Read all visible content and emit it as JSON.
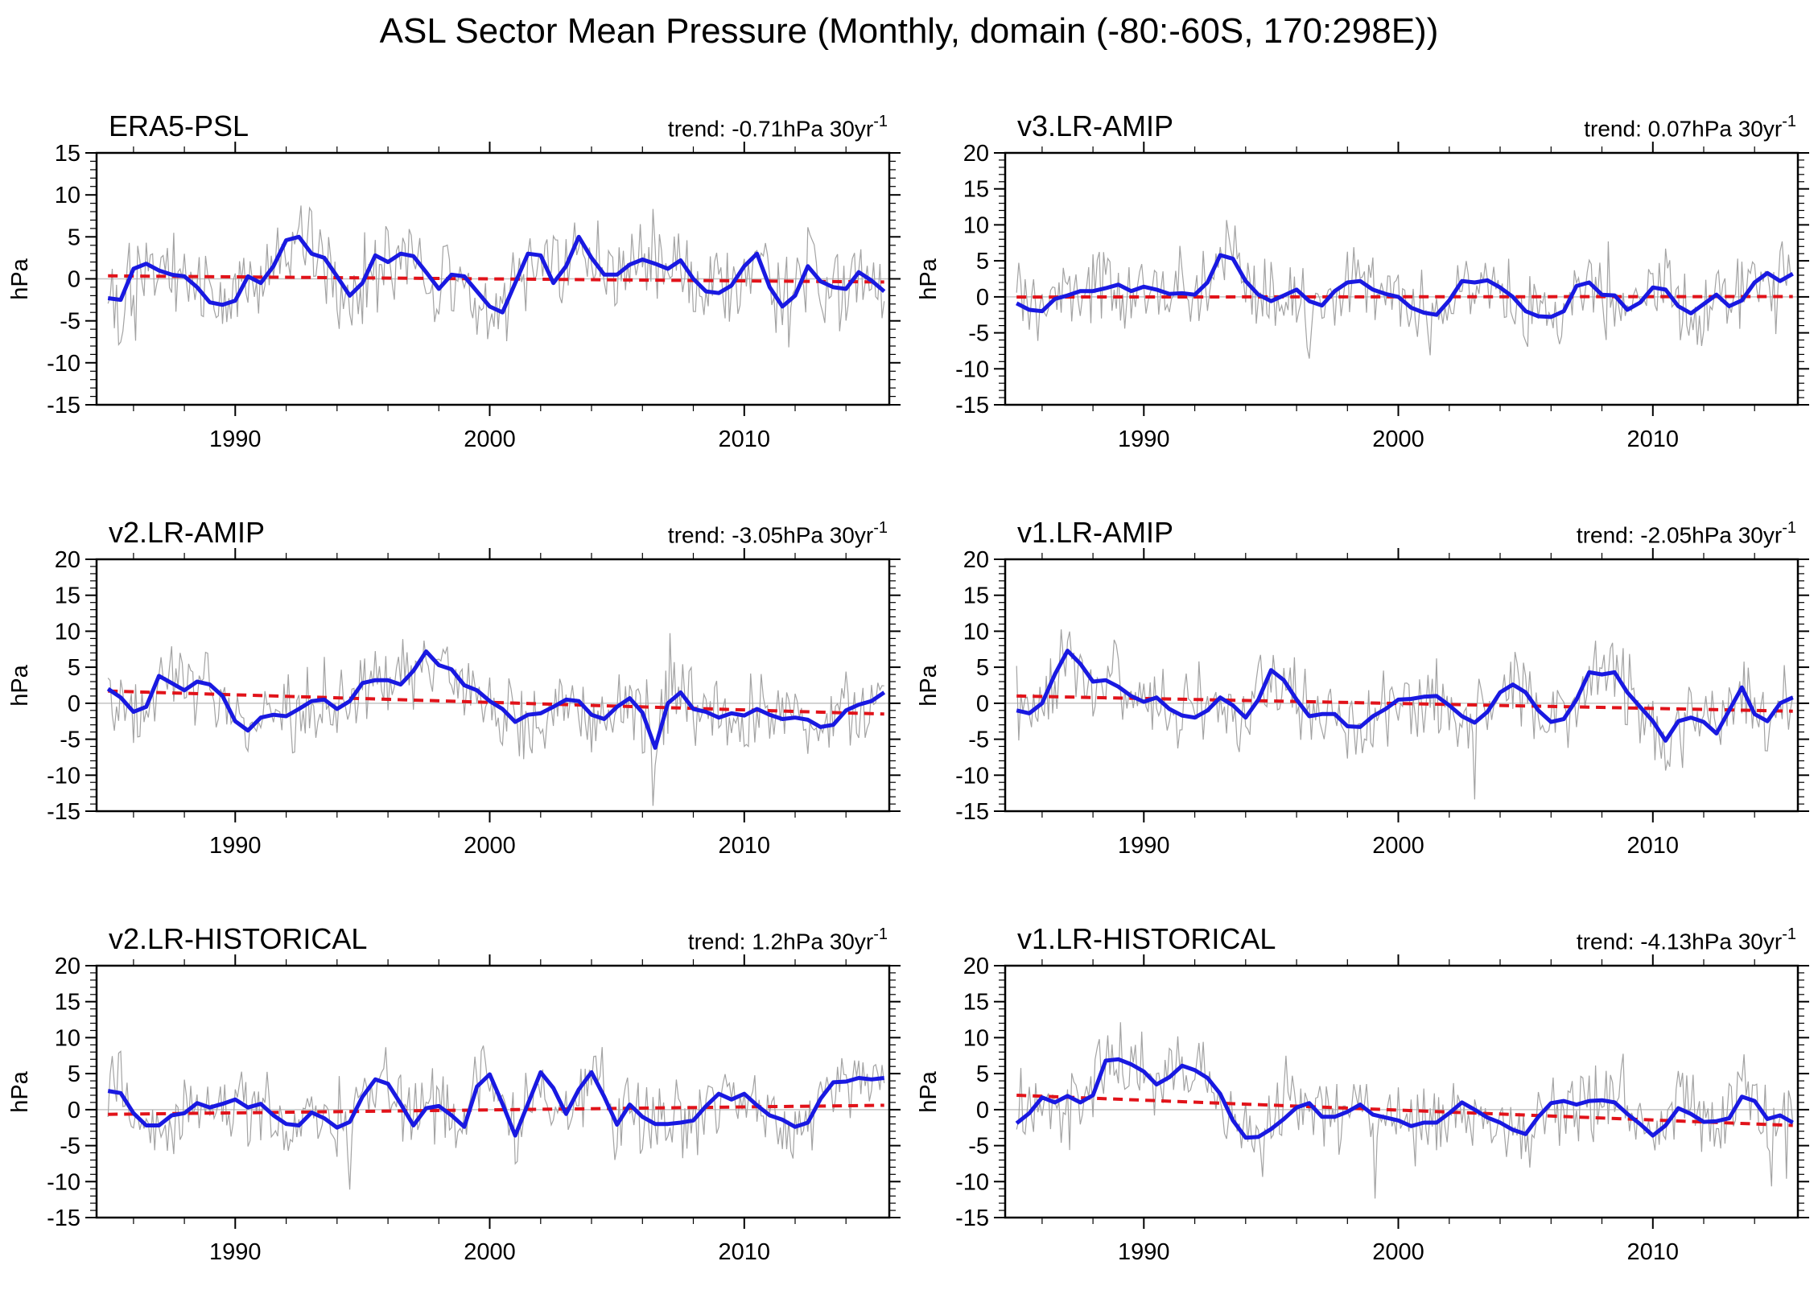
{
  "page_title": "ASL Sector Mean Pressure (Monthly, domain (-80:-60S, 170:298E))",
  "colors": {
    "monthly_line": "#a3a3a3",
    "smoothed_line": "#1919e1",
    "trend_line": "#e1131a",
    "zero_line": "#c4c4c4",
    "axis": "#000000"
  },
  "chart_data": [
    {
      "id": "era5-psl",
      "type": "line",
      "title": "ERA5-PSL",
      "trend_label": "trend: -0.71hPa 30yr",
      "trend_sup": "-1",
      "trend_value_hpa_per_30yr": -0.71,
      "ylabel": "hPa",
      "ylim": [
        -15,
        15
      ],
      "ytick_major": 5,
      "ytick_minor": 1,
      "xlim": [
        1984.55,
        2015.7
      ],
      "xticks": [
        1990,
        2000,
        2010
      ],
      "xtick_minor_step": 2,
      "grid": false,
      "trend_line": {
        "x": [
          1985.0,
          2015.5
        ],
        "y": [
          0.35,
          -0.37
        ]
      },
      "series": [
        {
          "name": "monthly",
          "role": "noisy-monthly",
          "note": "monthly anomalies reconstructed as smoothed series + noise",
          "noise": {
            "seed": 101,
            "amplitude": 4.8,
            "clamp": [
              -13.8,
              13.8
            ]
          }
        },
        {
          "name": "12-month running mean",
          "role": "smoothed",
          "x_start": 1985.0,
          "x_step": 0.5,
          "y": [
            -2.3,
            -2.5,
            1.2,
            1.8,
            1.0,
            0.5,
            0.3,
            -1.0,
            -2.8,
            -3.1,
            -2.6,
            0.3,
            -0.5,
            1.5,
            4.6,
            5.0,
            3.0,
            2.5,
            0.3,
            -2.0,
            -0.5,
            2.8,
            2.0,
            3.0,
            2.7,
            0.8,
            -1.2,
            0.5,
            0.3,
            -1.5,
            -3.3,
            -4.0,
            -0.5,
            3.0,
            2.8,
            -0.5,
            1.5,
            5.0,
            2.5,
            0.5,
            0.5,
            1.7,
            2.3,
            1.8,
            1.2,
            2.2,
            0.0,
            -1.5,
            -1.7,
            -0.8,
            1.5,
            3.0,
            -1.0,
            -3.3,
            -2.0,
            1.5,
            -0.3,
            -1.0,
            -1.2,
            0.8,
            -0.2,
            -1.5
          ]
        }
      ]
    },
    {
      "id": "v3-lr-amip",
      "type": "line",
      "title": "v3.LR-AMIP",
      "trend_label": "trend: 0.07hPa 30yr",
      "trend_sup": "-1",
      "trend_value_hpa_per_30yr": 0.07,
      "ylabel": "hPa",
      "ylim": [
        -15,
        20
      ],
      "ytick_major": 5,
      "ytick_minor": 1,
      "xlim": [
        1984.55,
        2015.7
      ],
      "xticks": [
        1990,
        2000,
        2010
      ],
      "xtick_minor_step": 2,
      "grid": false,
      "trend_line": {
        "x": [
          1985.0,
          2015.5
        ],
        "y": [
          -0.03,
          0.04
        ]
      },
      "series": [
        {
          "name": "monthly",
          "role": "noisy-monthly",
          "note": "monthly anomalies reconstructed as smoothed series + noise",
          "noise": {
            "seed": 102,
            "amplitude": 4.7,
            "clamp": [
              -14.3,
              17.5
            ]
          }
        },
        {
          "name": "12-month running mean",
          "role": "smoothed",
          "x_start": 1985.0,
          "x_step": 0.5,
          "y": [
            -0.9,
            -1.8,
            -2.0,
            -0.3,
            0.2,
            0.8,
            0.8,
            1.2,
            1.7,
            0.8,
            1.4,
            1.0,
            0.4,
            0.5,
            0.3,
            2.0,
            5.8,
            5.3,
            2.2,
            0.3,
            -0.6,
            0.2,
            1.0,
            -0.6,
            -1.2,
            0.8,
            2.0,
            2.2,
            1.0,
            0.4,
            0.0,
            -1.5,
            -2.2,
            -2.5,
            -0.5,
            2.2,
            2.0,
            2.3,
            1.3,
            0.0,
            -2.0,
            -2.7,
            -2.8,
            -2.0,
            1.5,
            2.0,
            0.3,
            0.2,
            -1.8,
            -0.8,
            1.3,
            1.0,
            -1.3,
            -2.3,
            -1.0,
            0.3,
            -1.3,
            -0.5,
            2.0,
            3.3,
            2.2,
            3.2
          ]
        }
      ]
    },
    {
      "id": "v2-lr-amip",
      "type": "line",
      "title": "v2.LR-AMIP",
      "trend_label": "trend: -3.05hPa 30yr",
      "trend_sup": "-1",
      "trend_value_hpa_per_30yr": -3.05,
      "ylabel": "hPa",
      "ylim": [
        -15,
        20
      ],
      "ytick_major": 5,
      "ytick_minor": 1,
      "xlim": [
        1984.55,
        2015.7
      ],
      "xticks": [
        1990,
        2000,
        2010
      ],
      "xtick_minor_step": 2,
      "grid": false,
      "trend_line": {
        "x": [
          1985.0,
          2015.5
        ],
        "y": [
          1.7,
          -1.5
        ]
      },
      "series": [
        {
          "name": "monthly",
          "role": "noisy-monthly",
          "note": "monthly anomalies reconstructed as smoothed series + noise",
          "noise": {
            "seed": 103,
            "amplitude": 4.8,
            "clamp": [
              -14.3,
              17.5
            ]
          }
        },
        {
          "name": "12-month running mean",
          "role": "smoothed",
          "x_start": 1985.0,
          "x_step": 0.5,
          "y": [
            2.0,
            0.8,
            -1.2,
            -0.5,
            3.8,
            2.8,
            1.8,
            3.0,
            2.6,
            1.0,
            -2.5,
            -3.8,
            -2.0,
            -1.6,
            -1.8,
            -0.8,
            0.3,
            0.5,
            -0.8,
            0.3,
            2.8,
            3.2,
            3.2,
            2.6,
            4.5,
            7.2,
            5.3,
            4.7,
            2.5,
            1.8,
            0.3,
            -0.8,
            -2.6,
            -1.6,
            -1.4,
            -0.5,
            0.5,
            0.3,
            -1.6,
            -2.2,
            -0.5,
            0.7,
            -1.3,
            -6.2,
            0.0,
            1.5,
            -0.8,
            -1.2,
            -2.0,
            -1.4,
            -1.7,
            -0.8,
            -1.6,
            -2.2,
            -2.0,
            -2.3,
            -3.3,
            -3.0,
            -1.0,
            -0.2,
            0.3,
            1.5
          ]
        }
      ]
    },
    {
      "id": "v1-lr-amip",
      "type": "line",
      "title": "v1.LR-AMIP",
      "trend_label": "trend: -2.05hPa 30yr",
      "trend_sup": "-1",
      "trend_value_hpa_per_30yr": -2.05,
      "ylabel": "hPa",
      "ylim": [
        -15,
        20
      ],
      "ytick_major": 5,
      "ytick_minor": 1,
      "xlim": [
        1984.55,
        2015.7
      ],
      "xticks": [
        1990,
        2000,
        2010
      ],
      "xtick_minor_step": 2,
      "grid": false,
      "trend_line": {
        "x": [
          1985.0,
          2015.5
        ],
        "y": [
          1.0,
          -1.1
        ]
      },
      "series": [
        {
          "name": "monthly",
          "role": "noisy-monthly",
          "note": "monthly anomalies reconstructed as smoothed series + noise",
          "noise": {
            "seed": 104,
            "amplitude": 4.8,
            "clamp": [
              -14.3,
              17.5
            ]
          }
        },
        {
          "name": "12-month running mean",
          "role": "smoothed",
          "x_start": 1985.0,
          "x_step": 0.5,
          "y": [
            -1.0,
            -1.4,
            0.0,
            4.0,
            7.3,
            5.5,
            3.0,
            3.2,
            2.3,
            1.0,
            0.2,
            0.8,
            -0.8,
            -1.7,
            -2.0,
            -1.0,
            0.8,
            -0.3,
            -2.0,
            0.5,
            4.6,
            3.2,
            0.5,
            -1.8,
            -1.5,
            -1.5,
            -3.2,
            -3.3,
            -1.8,
            -0.8,
            0.5,
            0.6,
            0.9,
            1.0,
            -0.3,
            -1.8,
            -2.7,
            -1.2,
            1.5,
            2.6,
            1.5,
            -1.0,
            -2.6,
            -2.2,
            0.5,
            4.3,
            4.0,
            4.3,
            1.5,
            -0.5,
            -2.5,
            -5.2,
            -2.5,
            -2.0,
            -2.6,
            -4.2,
            -1.0,
            2.2,
            -1.5,
            -2.5,
            0.0,
            0.8
          ]
        }
      ]
    },
    {
      "id": "v2-lr-historical",
      "type": "line",
      "title": "v2.LR-HISTORICAL",
      "trend_label": "trend: 1.2hPa 30yr",
      "trend_sup": "-1",
      "trend_value_hpa_per_30yr": 1.2,
      "ylabel": "hPa",
      "ylim": [
        -15,
        20
      ],
      "ytick_major": 5,
      "ytick_minor": 1,
      "xlim": [
        1984.55,
        2015.7
      ],
      "xticks": [
        1990,
        2000,
        2010
      ],
      "xtick_minor_step": 2,
      "grid": false,
      "trend_line": {
        "x": [
          1985.0,
          2015.5
        ],
        "y": [
          -0.65,
          0.6
        ]
      },
      "series": [
        {
          "name": "monthly",
          "role": "noisy-monthly",
          "note": "monthly anomalies reconstructed as smoothed series + noise",
          "noise": {
            "seed": 105,
            "amplitude": 4.8,
            "clamp": [
              -14.3,
              17.5
            ]
          }
        },
        {
          "name": "12-month running mean",
          "role": "smoothed",
          "x_start": 1985.0,
          "x_step": 0.5,
          "y": [
            2.6,
            2.3,
            -0.5,
            -2.2,
            -2.2,
            -0.8,
            -0.5,
            0.9,
            0.3,
            0.8,
            1.4,
            0.3,
            0.8,
            -0.8,
            -2.0,
            -2.2,
            -0.4,
            -1.2,
            -2.5,
            -1.7,
            1.8,
            4.2,
            3.6,
            0.8,
            -2.2,
            0.2,
            0.5,
            -0.8,
            -2.4,
            3.2,
            4.9,
            0.8,
            -3.6,
            0.8,
            5.2,
            3.0,
            -0.6,
            2.8,
            5.2,
            1.8,
            -2.1,
            0.7,
            -1.0,
            -2.0,
            -2.0,
            -1.8,
            -1.5,
            0.5,
            2.2,
            1.4,
            2.2,
            0.6,
            -0.8,
            -1.4,
            -2.4,
            -1.8,
            1.5,
            3.8,
            3.9,
            4.4,
            4.2,
            4.4
          ]
        }
      ]
    },
    {
      "id": "v1-lr-historical",
      "type": "line",
      "title": "v1.LR-HISTORICAL",
      "trend_label": "trend: -4.13hPa 30yr",
      "trend_sup": "-1",
      "trend_value_hpa_per_30yr": -4.13,
      "ylabel": "hPa",
      "ylim": [
        -15,
        20
      ],
      "ytick_major": 5,
      "ytick_minor": 1,
      "xlim": [
        1984.55,
        2015.7
      ],
      "xticks": [
        1990,
        2000,
        2010
      ],
      "xtick_minor_step": 2,
      "grid": false,
      "trend_line": {
        "x": [
          1985.0,
          2015.5
        ],
        "y": [
          2.0,
          -2.2
        ]
      },
      "series": [
        {
          "name": "monthly",
          "role": "noisy-monthly",
          "note": "monthly anomalies reconstructed as smoothed series + noise",
          "noise": {
            "seed": 106,
            "amplitude": 4.7,
            "clamp": [
              -14.3,
              17.5
            ]
          }
        },
        {
          "name": "12-month running mean",
          "role": "smoothed",
          "x_start": 1985.0,
          "x_step": 0.5,
          "y": [
            -1.9,
            -0.5,
            1.7,
            1.0,
            1.9,
            1.0,
            2.0,
            6.8,
            7.0,
            6.3,
            5.3,
            3.5,
            4.5,
            6.1,
            5.5,
            4.4,
            2.2,
            -1.5,
            -3.9,
            -3.8,
            -2.7,
            -1.3,
            0.3,
            0.9,
            -1.0,
            -1.0,
            -0.3,
            0.7,
            -0.7,
            -1.1,
            -1.5,
            -2.3,
            -1.8,
            -1.8,
            -0.5,
            1.0,
            0.0,
            -1.1,
            -1.8,
            -2.8,
            -3.4,
            -1.0,
            0.9,
            1.2,
            0.7,
            1.2,
            1.3,
            1.0,
            -0.6,
            -2.0,
            -3.6,
            -2.2,
            0.2,
            -0.6,
            -1.7,
            -1.6,
            -1.2,
            1.8,
            1.2,
            -1.3,
            -0.8,
            -1.8
          ]
        }
      ]
    }
  ]
}
